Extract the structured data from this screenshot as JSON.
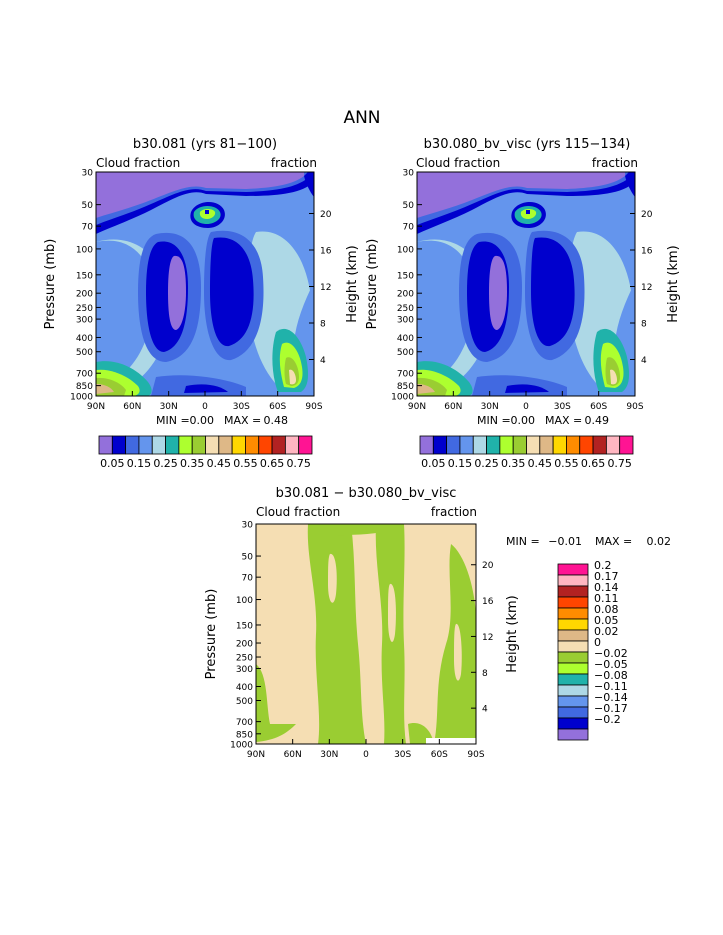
{
  "page_title": "ANN",
  "chart_data": [
    {
      "type": "contour",
      "title": "b30.081 (yrs 81−100)",
      "left_label": "Cloud fraction",
      "right_label": "fraction",
      "ylabel": "Pressure (mb)",
      "ylabel_right": "Height (km)",
      "x_ticks": [
        "90N",
        "60N",
        "30N",
        "0",
        "30S",
        "60S",
        "90S"
      ],
      "y_ticks": [
        "30",
        "50",
        "70",
        "100",
        "150",
        "200",
        "250",
        "300",
        "400",
        "500",
        "700",
        "850",
        "1000"
      ],
      "y_ticks_right": [
        "20",
        "16",
        "12",
        "8",
        "4"
      ],
      "min_label": "MIN =",
      "min_value": "0.00",
      "max_label": "MAX =",
      "max_value": "0.48",
      "colorbar": {
        "orientation": "horizontal",
        "labels": [
          "0.05",
          "0.15",
          "0.25",
          "0.35",
          "0.45",
          "0.55",
          "0.65",
          "0.75"
        ],
        "colors": [
          "#9370db",
          "#0000cd",
          "#4169e1",
          "#6495ed",
          "#add8e6",
          "#20b2aa",
          "#adff2f",
          "#9acd32",
          "#f5deb3",
          "#deb887",
          "#ffd700",
          "#ff8c00",
          "#ff4500",
          "#b22222",
          "#ffb6c1",
          "#ff1493"
        ]
      }
    },
    {
      "type": "contour",
      "title": "b30.080_bv_visc (yrs 115−134)",
      "left_label": "Cloud fraction",
      "right_label": "fraction",
      "ylabel": "Pressure (mb)",
      "ylabel_right": "Height (km)",
      "x_ticks": [
        "90N",
        "60N",
        "30N",
        "0",
        "30S",
        "60S",
        "90S"
      ],
      "y_ticks": [
        "30",
        "50",
        "70",
        "100",
        "150",
        "200",
        "250",
        "300",
        "400",
        "500",
        "700",
        "850",
        "1000"
      ],
      "y_ticks_right": [
        "20",
        "16",
        "12",
        "8",
        "4"
      ],
      "min_label": "MIN =",
      "min_value": "0.00",
      "max_label": "MAX =",
      "max_value": "0.49",
      "colorbar": {
        "orientation": "horizontal",
        "labels": [
          "0.05",
          "0.15",
          "0.25",
          "0.35",
          "0.45",
          "0.55",
          "0.65",
          "0.75"
        ],
        "colors": [
          "#9370db",
          "#0000cd",
          "#4169e1",
          "#6495ed",
          "#add8e6",
          "#20b2aa",
          "#adff2f",
          "#9acd32",
          "#f5deb3",
          "#deb887",
          "#ffd700",
          "#ff8c00",
          "#ff4500",
          "#b22222",
          "#ffb6c1",
          "#ff1493"
        ]
      }
    },
    {
      "type": "contour",
      "title": "b30.081 − b30.080_bv_visc",
      "left_label": "Cloud fraction",
      "right_label": "fraction",
      "ylabel": "Pressure (mb)",
      "ylabel_right": "Height (km)",
      "x_ticks": [
        "90N",
        "60N",
        "30N",
        "0",
        "30S",
        "60S",
        "90S"
      ],
      "y_ticks": [
        "30",
        "50",
        "70",
        "100",
        "150",
        "200",
        "250",
        "300",
        "400",
        "500",
        "700",
        "850",
        "1000"
      ],
      "y_ticks_right": [
        "20",
        "16",
        "12",
        "8",
        "4"
      ],
      "min_label": "MIN =",
      "min_value": "−0.01",
      "max_label": "MAX =",
      "max_value": "0.02",
      "colorbar": {
        "orientation": "vertical",
        "labels": [
          "0.2",
          "0.17",
          "0.14",
          "0.11",
          "0.08",
          "0.05",
          "0.02",
          "0",
          "−0.02",
          "−0.05",
          "−0.08",
          "−0.11",
          "−0.14",
          "−0.17",
          "−0.2"
        ],
        "colors": [
          "#ff1493",
          "#ffb6c1",
          "#b22222",
          "#ff4500",
          "#ff8c00",
          "#ffd700",
          "#deb887",
          "#f5deb3",
          "#9acd32",
          "#adff2f",
          "#20b2aa",
          "#add8e6",
          "#6495ed",
          "#4169e1",
          "#0000cd",
          "#9370db"
        ]
      }
    }
  ]
}
